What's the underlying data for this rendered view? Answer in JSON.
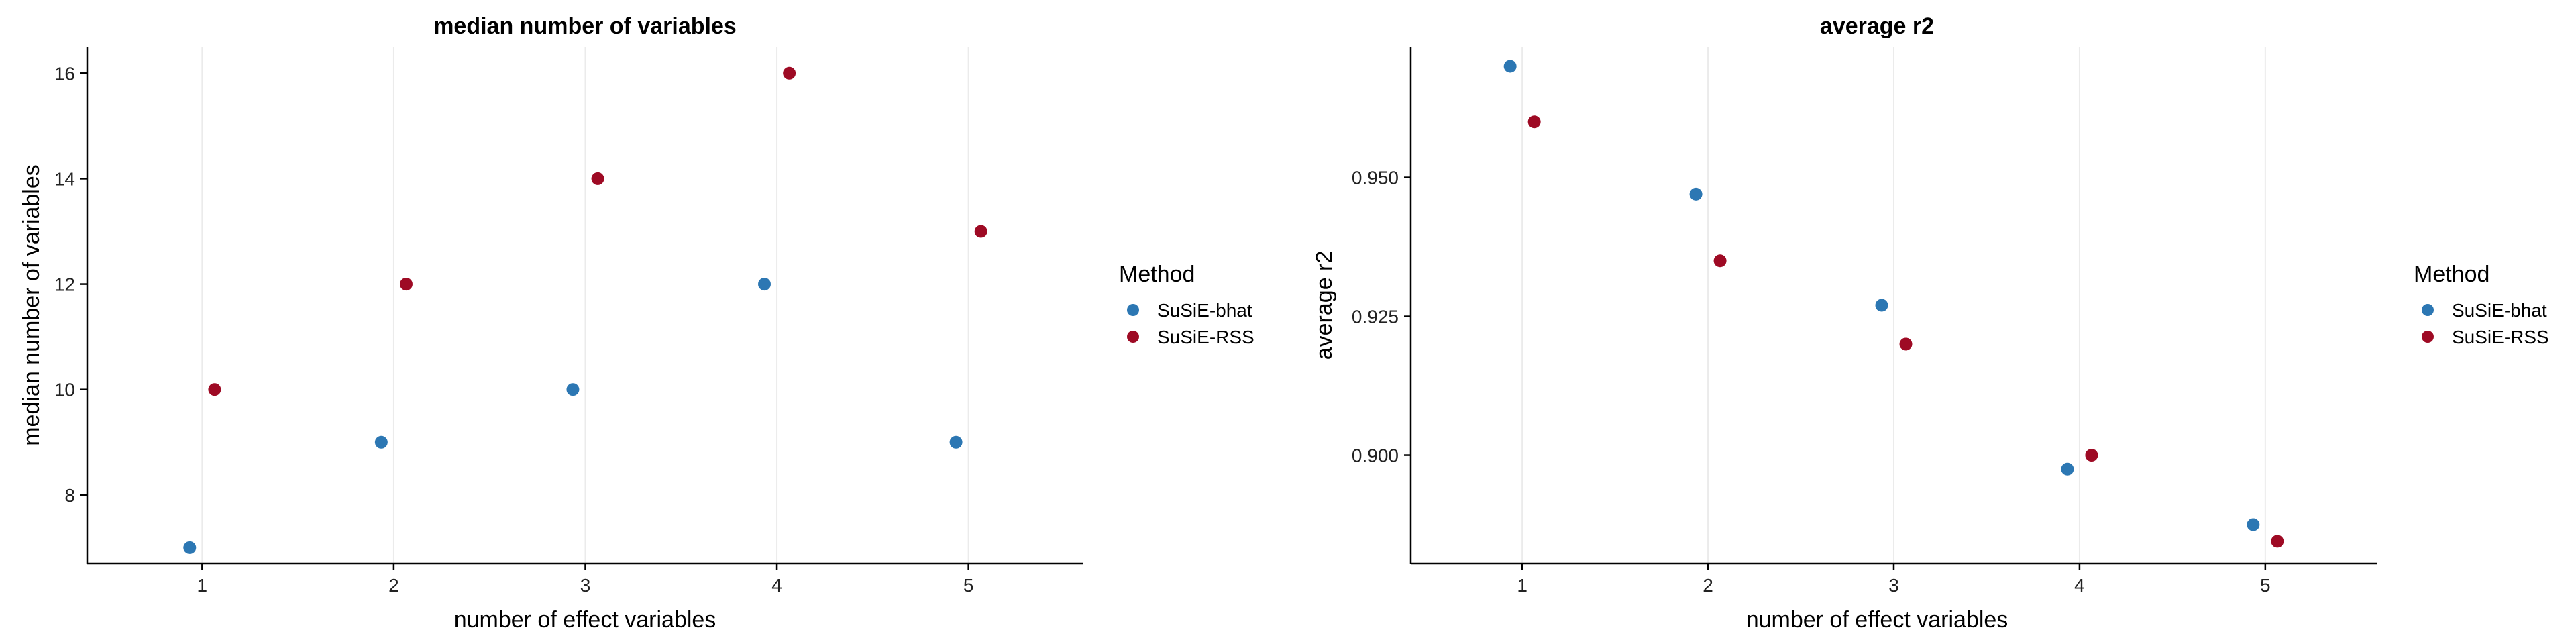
{
  "chart_data": [
    {
      "type": "scatter",
      "title": "median number of variables",
      "xlabel": "number of effect variables",
      "ylabel": "median number of variables",
      "xlim": [
        0.4,
        5.6
      ],
      "ylim": [
        6.7,
        16.5
      ],
      "xticks": [
        1,
        2,
        3,
        4,
        5
      ],
      "yticks": [
        8,
        10,
        12,
        14,
        16
      ],
      "yticklabels": [
        "8",
        "10",
        "12",
        "14",
        "16"
      ],
      "grid": "vertical-major",
      "legend": {
        "title": "Method",
        "placement": "right"
      },
      "series": [
        {
          "name": "SuSiE-bhat",
          "color": "#2C77B3",
          "dodge": -0.065,
          "points": [
            {
              "x": 1,
              "y": 7
            },
            {
              "x": 2,
              "y": 9
            },
            {
              "x": 3,
              "y": 10
            },
            {
              "x": 4,
              "y": 12
            },
            {
              "x": 5,
              "y": 9
            }
          ]
        },
        {
          "name": "SuSiE-RSS",
          "color": "#9E0A24",
          "dodge": 0.065,
          "points": [
            {
              "x": 1,
              "y": 10
            },
            {
              "x": 2,
              "y": 12
            },
            {
              "x": 3,
              "y": 14
            },
            {
              "x": 4,
              "y": 16
            },
            {
              "x": 5,
              "y": 13
            }
          ]
        }
      ]
    },
    {
      "type": "scatter",
      "title": "average r2",
      "xlabel": "number of effect variables",
      "ylabel": "average r2",
      "xlim": [
        0.4,
        5.6
      ],
      "ylim": [
        0.8805,
        0.9735
      ],
      "xticks": [
        1,
        2,
        3,
        4,
        5
      ],
      "yticks": [
        0.9,
        0.925,
        0.95
      ],
      "yticklabels": [
        "0.900",
        "0.925",
        "0.950"
      ],
      "grid": "vertical-major",
      "legend": {
        "title": "Method",
        "placement": "right"
      },
      "series": [
        {
          "name": "SuSiE-bhat",
          "color": "#2C77B3",
          "dodge": -0.065,
          "points": [
            {
              "x": 1,
              "y": 0.97
            },
            {
              "x": 2,
              "y": 0.947
            },
            {
              "x": 3,
              "y": 0.927
            },
            {
              "x": 4,
              "y": 0.8975
            },
            {
              "x": 5,
              "y": 0.8875
            }
          ]
        },
        {
          "name": "SuSiE-RSS",
          "color": "#9E0A24",
          "dodge": 0.065,
          "points": [
            {
              "x": 1,
              "y": 0.96
            },
            {
              "x": 2,
              "y": 0.935
            },
            {
              "x": 3,
              "y": 0.92
            },
            {
              "x": 4,
              "y": 0.9
            },
            {
              "x": 5,
              "y": 0.8845
            }
          ]
        }
      ]
    }
  ]
}
